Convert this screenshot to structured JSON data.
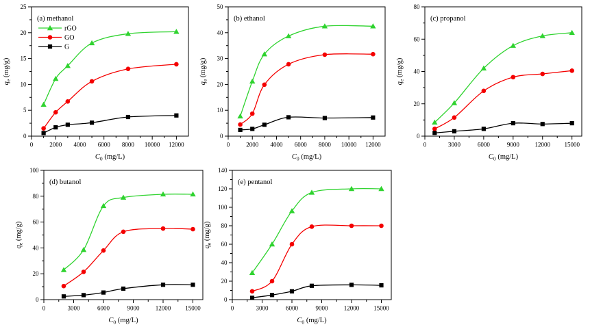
{
  "figure": {
    "background": "#ffffff",
    "axis_color": "#000000",
    "series_colors": {
      "rGO": "#2fd32f",
      "GO": "#f40000",
      "G": "#000000"
    }
  },
  "chart_data": [
    {
      "type": "scatter",
      "label": "(a) methanol",
      "xlabel": {
        "var": "C",
        "sub": "0",
        "rest": " (mg/L)"
      },
      "ylabel": {
        "var": "q",
        "sub": "e",
        "rest": " (mg/g)"
      },
      "xlim": [
        0,
        13000
      ],
      "ylim": [
        0,
        25
      ],
      "xticks": [
        0,
        2000,
        4000,
        6000,
        8000,
        10000,
        12000
      ],
      "yticks": [
        0,
        5,
        10,
        15,
        20,
        25
      ],
      "x_minor": 1000,
      "y_minor": 2.5,
      "show_legend": true,
      "legend_entries": [
        "rGO",
        "GO",
        "G"
      ],
      "series": [
        {
          "name": "rGO",
          "color": "#2fd32f",
          "marker": "triangle",
          "x": [
            1000,
            2000,
            3000,
            5000,
            8000,
            12000
          ],
          "y": [
            6.1,
            11.1,
            13.6,
            18.0,
            19.8,
            20.2
          ]
        },
        {
          "name": "GO",
          "color": "#f40000",
          "marker": "circle",
          "x": [
            1000,
            2000,
            3000,
            5000,
            8000,
            12000
          ],
          "y": [
            1.5,
            4.6,
            6.7,
            10.6,
            13.0,
            13.9
          ]
        },
        {
          "name": "G",
          "color": "#000000",
          "marker": "square",
          "x": [
            1000,
            2000,
            3000,
            5000,
            8000,
            12000
          ],
          "y": [
            0.6,
            1.7,
            2.2,
            2.6,
            3.7,
            4.0
          ]
        }
      ]
    },
    {
      "type": "scatter",
      "label": "(b) ethanol",
      "xlabel": {
        "var": "C",
        "sub": "0",
        "rest": " (mg/L)"
      },
      "ylabel": {
        "var": "q",
        "sub": "e",
        "rest": " (mg/g)"
      },
      "xlim": [
        0,
        13000
      ],
      "ylim": [
        0,
        50
      ],
      "xticks": [
        0,
        2000,
        4000,
        6000,
        8000,
        10000,
        12000
      ],
      "yticks": [
        0,
        10,
        20,
        30,
        40,
        50
      ],
      "x_minor": 1000,
      "y_minor": 5,
      "show_legend": false,
      "legend_entries": [],
      "series": [
        {
          "name": "rGO",
          "color": "#2fd32f",
          "marker": "triangle",
          "x": [
            1000,
            2000,
            3000,
            5000,
            8000,
            12000
          ],
          "y": [
            7.7,
            21.2,
            31.7,
            38.7,
            42.5,
            42.5
          ]
        },
        {
          "name": "GO",
          "color": "#f40000",
          "marker": "circle",
          "x": [
            1000,
            2000,
            3000,
            5000,
            8000,
            12000
          ],
          "y": [
            4.5,
            8.7,
            19.9,
            27.8,
            31.5,
            31.7
          ]
        },
        {
          "name": "G",
          "color": "#000000",
          "marker": "square",
          "x": [
            1000,
            2000,
            3000,
            5000,
            8000,
            12000
          ],
          "y": [
            2.4,
            2.8,
            4.4,
            7.3,
            7.0,
            7.2
          ]
        }
      ]
    },
    {
      "type": "scatter",
      "label": "(c) propanol",
      "xlabel": {
        "var": "C",
        "sub": "0",
        "rest": " (mg/L)"
      },
      "ylabel": {
        "var": "q",
        "sub": "e",
        "rest": " (mg/g)"
      },
      "xlim": [
        0,
        16000
      ],
      "ylim": [
        0,
        80
      ],
      "xticks": [
        0,
        3000,
        6000,
        9000,
        12000,
        15000
      ],
      "yticks": [
        0,
        20,
        40,
        60,
        80
      ],
      "x_minor": 1500,
      "y_minor": 10,
      "show_legend": false,
      "legend_entries": [],
      "series": [
        {
          "name": "rGO",
          "color": "#2fd32f",
          "marker": "triangle",
          "x": [
            1000,
            3000,
            6000,
            9000,
            12000,
            15000
          ],
          "y": [
            8.5,
            20.5,
            42.0,
            56.0,
            62.0,
            64.0
          ]
        },
        {
          "name": "GO",
          "color": "#f40000",
          "marker": "circle",
          "x": [
            1000,
            3000,
            6000,
            9000,
            12000,
            15000
          ],
          "y": [
            4.5,
            11.5,
            28.0,
            36.5,
            38.5,
            40.5
          ]
        },
        {
          "name": "G",
          "color": "#000000",
          "marker": "square",
          "x": [
            1000,
            3000,
            6000,
            9000,
            12000,
            15000
          ],
          "y": [
            2.0,
            3.0,
            4.5,
            8.0,
            7.5,
            8.0
          ]
        }
      ]
    },
    {
      "type": "scatter",
      "label": "(d) butanol",
      "xlabel": {
        "var": "C",
        "sub": "0",
        "rest": " (mg/L)"
      },
      "ylabel": {
        "var": "q",
        "sub": "e",
        "rest": " (mg/g)"
      },
      "xlim": [
        0,
        16000
      ],
      "ylim": [
        0,
        100
      ],
      "xticks": [
        0,
        3000,
        6000,
        9000,
        12000,
        15000
      ],
      "yticks": [
        0,
        20,
        40,
        60,
        80,
        100
      ],
      "x_minor": 1500,
      "y_minor": 10,
      "show_legend": false,
      "legend_entries": [],
      "series": [
        {
          "name": "rGO",
          "color": "#2fd32f",
          "marker": "triangle",
          "x": [
            2000,
            4000,
            6000,
            8000,
            12000,
            15000
          ],
          "y": [
            23.0,
            38.5,
            72.5,
            79.0,
            81.5,
            81.5
          ]
        },
        {
          "name": "GO",
          "color": "#f40000",
          "marker": "circle",
          "x": [
            2000,
            4000,
            6000,
            8000,
            12000,
            15000
          ],
          "y": [
            10.5,
            21.5,
            38.0,
            52.5,
            55.0,
            54.5
          ]
        },
        {
          "name": "G",
          "color": "#000000",
          "marker": "square",
          "x": [
            2000,
            4000,
            6000,
            8000,
            12000,
            15000
          ],
          "y": [
            2.5,
            3.5,
            5.5,
            8.5,
            11.5,
            11.5
          ]
        }
      ]
    },
    {
      "type": "scatter",
      "label": "(e) pentanol",
      "xlabel": {
        "var": "C",
        "sub": "0",
        "rest": " (mg/L)"
      },
      "ylabel": {
        "var": "q",
        "sub": "e",
        "rest": " (mg/g)"
      },
      "xlim": [
        0,
        16000
      ],
      "ylim": [
        0,
        140
      ],
      "xticks": [
        0,
        3000,
        6000,
        9000,
        12000,
        15000
      ],
      "yticks": [
        0,
        20,
        40,
        60,
        80,
        100,
        120,
        140
      ],
      "x_minor": 1500,
      "y_minor": 10,
      "show_legend": false,
      "legend_entries": [],
      "series": [
        {
          "name": "rGO",
          "color": "#2fd32f",
          "marker": "triangle",
          "x": [
            2000,
            4000,
            6000,
            8000,
            12000,
            15000
          ],
          "y": [
            29.0,
            60.0,
            96.0,
            116.0,
            120.0,
            120.0
          ]
        },
        {
          "name": "GO",
          "color": "#f40000",
          "marker": "circle",
          "x": [
            2000,
            4000,
            6000,
            8000,
            12000,
            15000
          ],
          "y": [
            9.0,
            20.0,
            60.0,
            79.0,
            80.0,
            80.0
          ]
        },
        {
          "name": "G",
          "color": "#000000",
          "marker": "square",
          "x": [
            2000,
            4000,
            6000,
            8000,
            12000,
            15000
          ],
          "y": [
            2.0,
            5.0,
            9.0,
            15.0,
            16.0,
            15.5
          ]
        }
      ]
    }
  ]
}
